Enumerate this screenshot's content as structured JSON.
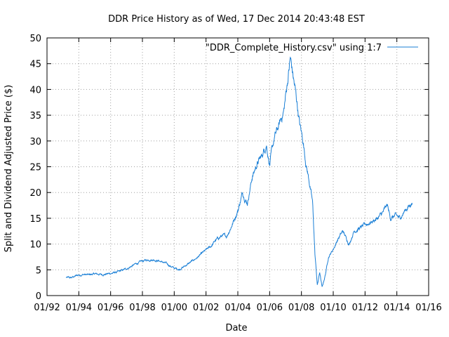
{
  "chart_data": {
    "type": "line",
    "title": "DDR Price History as of Wed, 17 Dec 2014 20:43:48 EST",
    "xlabel": "Date",
    "ylabel": "Split and Dividend Adjusted Price ($)",
    "legend": "\"DDR_Complete_History.csv\" using 1:7",
    "legend_position": "top-right",
    "grid": true,
    "xlim": [
      1992,
      2016
    ],
    "ylim": [
      0,
      50
    ],
    "x_ticks": [
      {
        "value": 1992,
        "label": "01/92"
      },
      {
        "value": 1994,
        "label": "01/94"
      },
      {
        "value": 1996,
        "label": "01/96"
      },
      {
        "value": 1998,
        "label": "01/98"
      },
      {
        "value": 2000,
        "label": "01/00"
      },
      {
        "value": 2002,
        "label": "01/02"
      },
      {
        "value": 2004,
        "label": "01/04"
      },
      {
        "value": 2006,
        "label": "01/06"
      },
      {
        "value": 2008,
        "label": "01/08"
      },
      {
        "value": 2010,
        "label": "01/10"
      },
      {
        "value": 2012,
        "label": "01/12"
      },
      {
        "value": 2014,
        "label": "01/14"
      },
      {
        "value": 2016,
        "label": "01/16"
      }
    ],
    "y_ticks": [
      {
        "value": 0,
        "label": "0"
      },
      {
        "value": 5,
        "label": "5"
      },
      {
        "value": 10,
        "label": "10"
      },
      {
        "value": 15,
        "label": "15"
      },
      {
        "value": 20,
        "label": "20"
      },
      {
        "value": 25,
        "label": "25"
      },
      {
        "value": 30,
        "label": "30"
      },
      {
        "value": 35,
        "label": "35"
      },
      {
        "value": 40,
        "label": "40"
      },
      {
        "value": 45,
        "label": "45"
      },
      {
        "value": 50,
        "label": "50"
      }
    ],
    "series": [
      {
        "name": "\"DDR_Complete_History.csv\" using 1:7",
        "color": "#1a7fd6",
        "x": [
          1993.2,
          1993.5,
          1993.8,
          1994.0,
          1994.3,
          1994.6,
          1995.0,
          1995.5,
          1996.0,
          1996.5,
          1997.0,
          1997.5,
          1998.0,
          1998.3,
          1998.6,
          1999.0,
          1999.5,
          2000.0,
          2000.3,
          2000.6,
          2001.0,
          2001.5,
          2002.0,
          2002.3,
          2002.6,
          2003.0,
          2003.3,
          2003.6,
          2004.0,
          2004.3,
          2004.6,
          2004.9,
          2005.2,
          2005.5,
          2005.8,
          2006.0,
          2006.3,
          2006.6,
          2006.9,
          2007.1,
          2007.3,
          2007.5,
          2007.7,
          2007.9,
          2008.1,
          2008.3,
          2008.5,
          2008.7,
          2008.85,
          2009.0,
          2009.15,
          2009.3,
          2009.5,
          2009.7,
          2010.0,
          2010.3,
          2010.6,
          2011.0,
          2011.3,
          2011.6,
          2011.9,
          2012.2,
          2012.5,
          2012.8,
          2013.1,
          2013.4,
          2013.6,
          2013.9,
          2014.2,
          2014.5,
          2014.8,
          2014.96
        ],
        "values": [
          3.5,
          3.4,
          3.8,
          4.0,
          4.1,
          4.0,
          4.2,
          4.1,
          4.3,
          4.6,
          5.2,
          6.0,
          6.7,
          6.9,
          7.0,
          6.8,
          6.2,
          5.3,
          5.1,
          5.6,
          6.4,
          7.5,
          8.8,
          9.5,
          10.7,
          11.6,
          11.5,
          13.5,
          16.5,
          20.0,
          18.0,
          23.0,
          25.5,
          27.0,
          29.5,
          25.5,
          30.5,
          33.0,
          36.0,
          41.0,
          46.0,
          42.0,
          38.0,
          33.0,
          30.0,
          25.5,
          22.0,
          18.0,
          8.0,
          2.0,
          4.5,
          1.5,
          4.0,
          7.5,
          9.0,
          11.0,
          12.5,
          10.0,
          12.5,
          13.0,
          13.5,
          14.0,
          14.5,
          15.0,
          16.0,
          17.5,
          15.0,
          15.5,
          15.0,
          16.5,
          17.5,
          18.0
        ]
      }
    ]
  }
}
